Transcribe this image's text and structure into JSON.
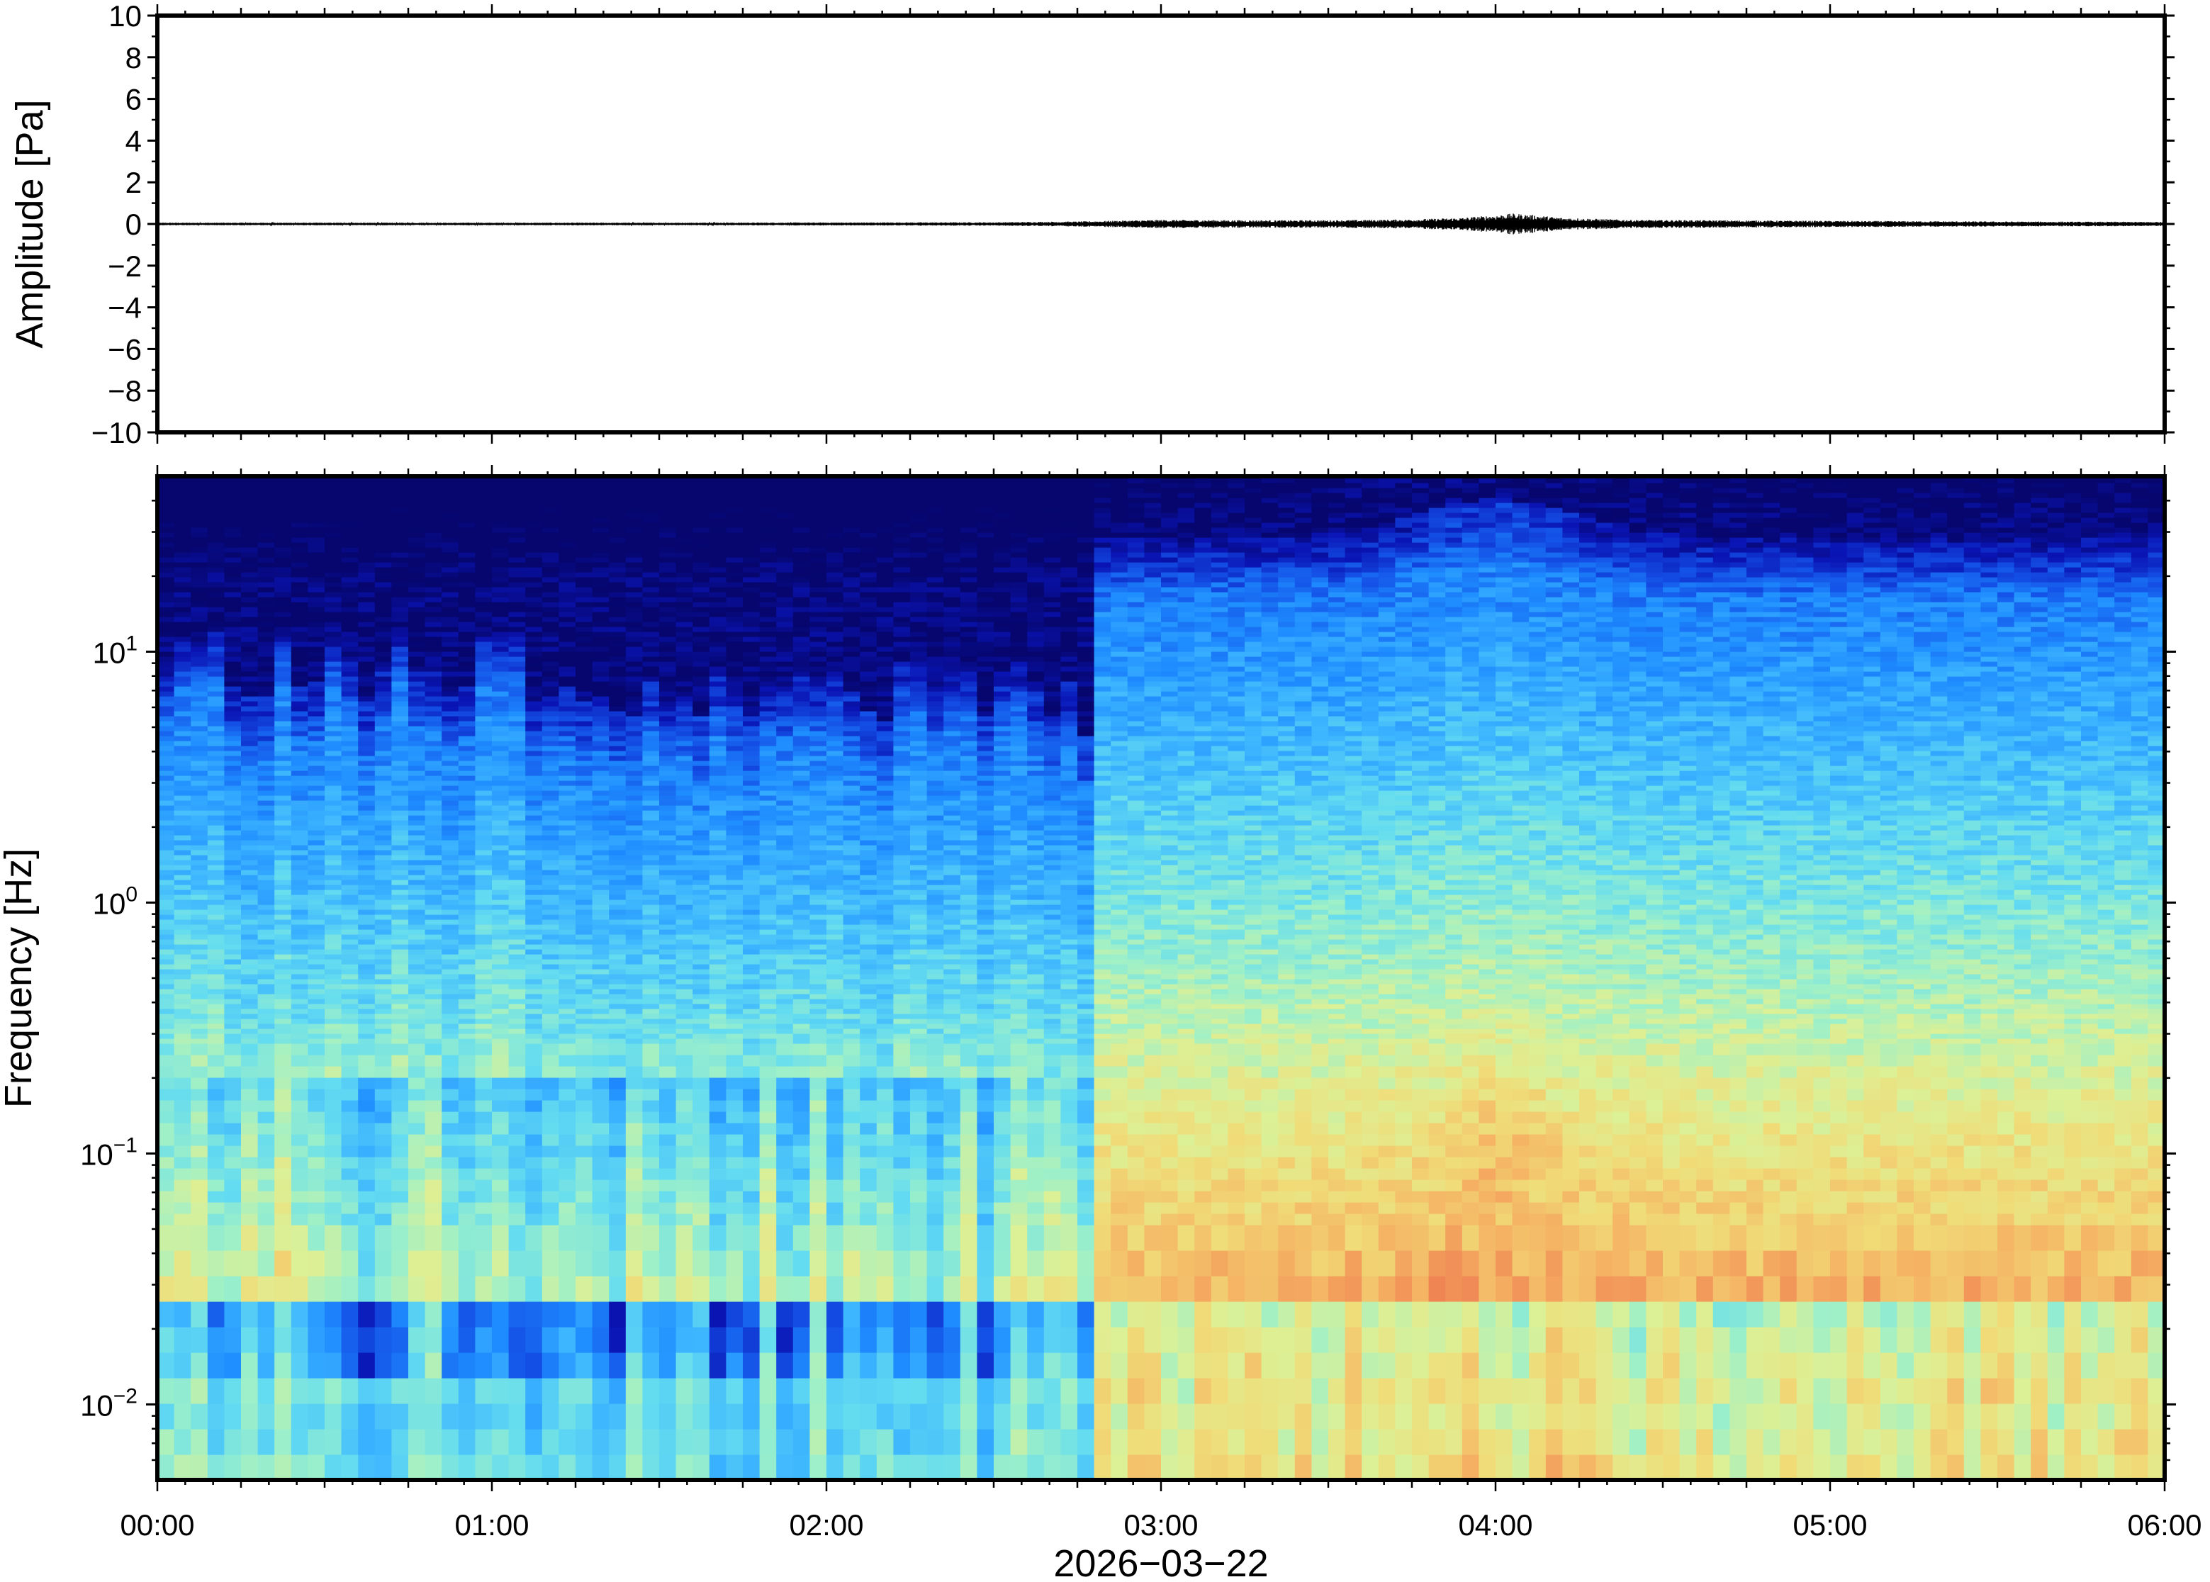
{
  "chart_data": [
    {
      "type": "line",
      "ylabel": "Amplitude [Pa]",
      "ylim": [
        -10,
        10
      ],
      "yticks": [
        10,
        8,
        6,
        4,
        2,
        0,
        -2,
        -4,
        -6,
        -8,
        -10
      ],
      "yticklabels": [
        "10",
        "8",
        "6",
        "4",
        "2",
        "0",
        "−2",
        "−4",
        "−6",
        "−8",
        "−10"
      ],
      "xlim_hours": [
        0,
        6
      ],
      "series": [
        {
          "color": "#000000",
          "envelope": {
            "x_hours": [
              0.0,
              0.5,
              1.0,
              1.5,
              2.0,
              2.5,
              2.75,
              3.0,
              3.25,
              3.5,
              3.75,
              3.9,
              4.0,
              4.05,
              4.1,
              4.2,
              4.4,
              4.75,
              5.0,
              5.5,
              6.0
            ],
            "amplitude_pa": [
              0.06,
              0.06,
              0.06,
              0.06,
              0.07,
              0.08,
              0.12,
              0.2,
              0.18,
              0.18,
              0.22,
              0.3,
              0.42,
              0.5,
              0.45,
              0.3,
              0.2,
              0.17,
              0.15,
              0.12,
              0.1
            ]
          }
        }
      ]
    },
    {
      "type": "heatmap",
      "ylabel": "Frequency [Hz]",
      "yscale": "log",
      "ylim": [
        0.005,
        50
      ],
      "yticks": [
        0.01,
        0.1,
        1,
        10
      ],
      "yticklabels": [
        {
          "base": "10",
          "exp": "−2"
        },
        {
          "base": "10",
          "exp": "−1"
        },
        {
          "base": "10",
          "exp": "0"
        },
        {
          "base": "10",
          "exp": "1"
        }
      ],
      "xlim_hours": [
        0,
        6
      ],
      "colormap": [
        "#06066e",
        "#0a14b4",
        "#1450e6",
        "#1e8cff",
        "#3cb4ff",
        "#64dcf0",
        "#9ef0c8",
        "#dcf096",
        "#f0dc78",
        "#f5b464",
        "#ee7850"
      ],
      "quiet_period_hours": [
        0,
        2.8
      ],
      "active_period_hours": [
        2.8,
        6.0
      ],
      "peak_event_hours": [
        3.8,
        4.2
      ]
    }
  ],
  "xaxis": {
    "ticklabels": [
      "00:00",
      "01:00",
      "02:00",
      "03:00",
      "04:00",
      "05:00",
      "06:00"
    ],
    "label": "2026−03−22"
  }
}
